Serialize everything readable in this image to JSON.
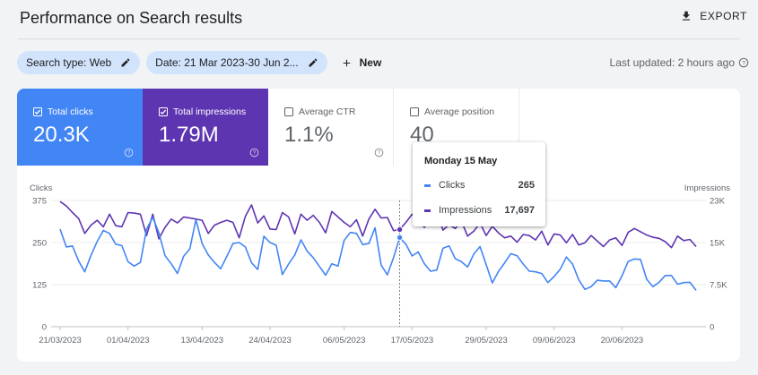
{
  "header": {
    "title": "Performance on Search results",
    "export_label": "EXPORT"
  },
  "filters": {
    "search_type": "Search type: Web",
    "date": "Date: 21 Mar 2023-30 Jun 2...",
    "new_label": "New",
    "last_updated": "Last updated: 2 hours ago"
  },
  "metrics": [
    {
      "label": "Total clicks",
      "value": "20.3K",
      "checked": true
    },
    {
      "label": "Total impressions",
      "value": "1.79M",
      "checked": true
    },
    {
      "label": "Average CTR",
      "value": "1.1%",
      "checked": false
    },
    {
      "label": "Average position",
      "value": "40",
      "checked": false
    }
  ],
  "tooltip": {
    "date": "Monday 15 May",
    "rows": [
      {
        "name": "Clicks",
        "value": "265"
      },
      {
        "name": "Impressions",
        "value": "17,697"
      }
    ]
  },
  "colors": {
    "clicks": "#4285f4",
    "impressions": "#5e35b1",
    "chip": "#d2e3fc"
  },
  "chart_data": {
    "type": "line",
    "ylabel_left": "Clicks",
    "ylabel_right": "Impressions",
    "left_ticks": [
      "375",
      "250",
      "125",
      "0"
    ],
    "right_ticks": [
      "23K",
      "15K",
      "7.5K",
      "0"
    ],
    "ylim_left": [
      0,
      375
    ],
    "ylim_right": [
      0,
      23000
    ],
    "x_ticks": [
      {
        "label": "21/03/2023",
        "day": 0
      },
      {
        "label": "01/04/2023",
        "day": 11
      },
      {
        "label": "13/04/2023",
        "day": 23
      },
      {
        "label": "24/04/2023",
        "day": 34
      },
      {
        "label": "06/05/2023",
        "day": 46
      },
      {
        "label": "17/05/2023",
        "day": 57
      },
      {
        "label": "29/05/2023",
        "day": 69
      },
      {
        "label": "09/06/2023",
        "day": 80
      },
      {
        "label": "20/06/2023",
        "day": 91
      }
    ],
    "hover_day": 55,
    "series": [
      {
        "name": "Clicks",
        "axis": "left",
        "color": "#4285f4",
        "values": [
          290,
          237,
          240,
          195,
          163,
          212,
          253,
          286,
          277,
          245,
          241,
          193,
          180,
          191,
          290,
          325,
          279,
          211,
          187,
          158,
          209,
          231,
          318,
          247,
          213,
          191,
          172,
          209,
          247,
          250,
          237,
          190,
          170,
          269,
          250,
          242,
          155,
          186,
          213,
          258,
          225,
          205,
          179,
          153,
          187,
          180,
          256,
          280,
          277,
          244,
          247,
          294,
          183,
          154,
          205,
          265,
          245,
          210,
          222,
          187,
          165,
          168,
          233,
          240,
          202,
          193,
          177,
          216,
          238,
          184,
          130,
          164,
          190,
          217,
          211,
          186,
          165,
          163,
          158,
          131,
          149,
          171,
          207,
          186,
          139,
          111,
          119,
          138,
          136,
          136,
          116,
          151,
          194,
          201,
          200,
          141,
          119,
          132,
          152,
          152,
          126,
          131,
          132,
          108
        ]
      },
      {
        "name": "Impressions",
        "axis": "right",
        "color": "#5e35b1",
        "values": [
          22800,
          22000,
          20800,
          19700,
          17000,
          18500,
          19400,
          18200,
          20500,
          18400,
          18200,
          20800,
          20700,
          20500,
          16600,
          20500,
          16000,
          18100,
          19600,
          18900,
          20000,
          19800,
          19600,
          19400,
          17000,
          18500,
          19000,
          19400,
          19000,
          16200,
          20100,
          22200,
          18900,
          20200,
          17800,
          17700,
          20800,
          20000,
          16900,
          20500,
          19400,
          20300,
          19000,
          17100,
          21000,
          20000,
          19000,
          18200,
          19500,
          16500,
          19600,
          21400,
          19800,
          19900,
          17500,
          17700,
          19000,
          20500,
          19100,
          18100,
          19500,
          20800,
          17600,
          18600,
          17900,
          19200,
          16500,
          17400,
          18900,
          16600,
          18300,
          17100,
          16200,
          16500,
          15400,
          16800,
          16600,
          15800,
          17400,
          14900,
          16900,
          16700,
          15300,
          16800,
          14900,
          15300,
          16600,
          15600,
          14600,
          15800,
          16200,
          14800,
          17200,
          17900,
          17300,
          16700,
          16300,
          16100,
          15500,
          14400,
          16500,
          15700,
          15900,
          14600
        ]
      }
    ]
  }
}
